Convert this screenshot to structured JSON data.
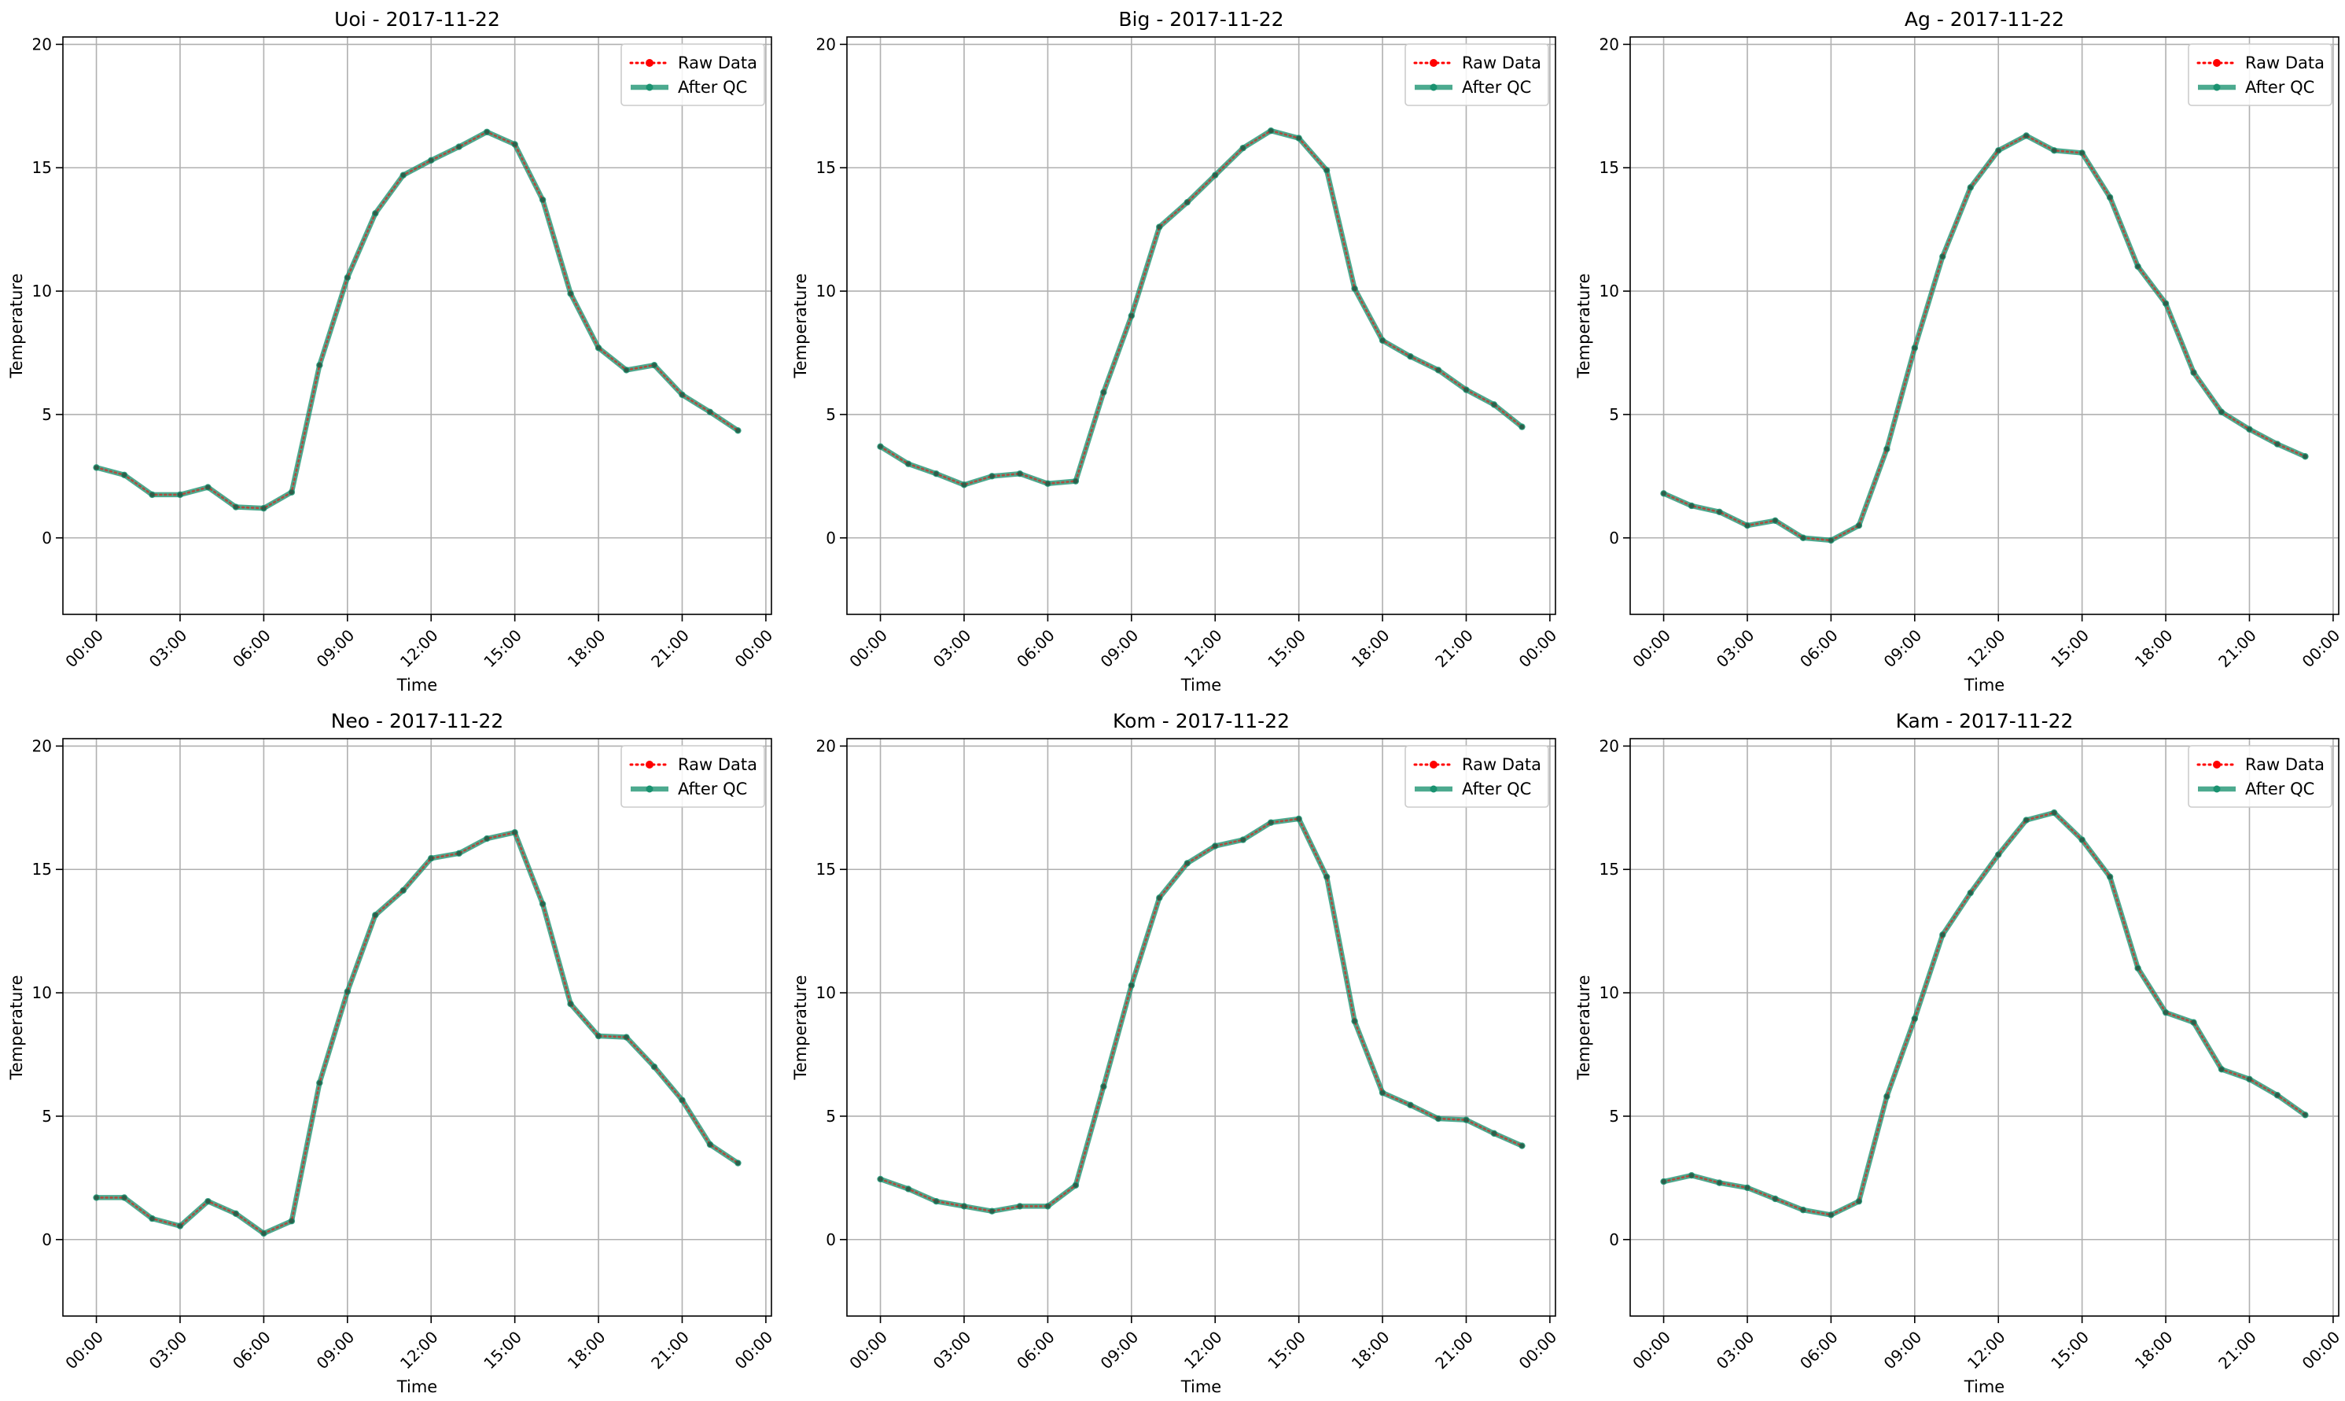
{
  "chart_data": [
    {
      "type": "line",
      "title": "Uoi - 2017-11-22",
      "xlabel": "Time",
      "ylabel": "Temperature",
      "x_ticks": [
        "00:00",
        "03:00",
        "06:00",
        "09:00",
        "12:00",
        "15:00",
        "18:00",
        "21:00",
        "00:00"
      ],
      "y_ticks": [
        "0",
        "5",
        "10",
        "15",
        "20"
      ],
      "ylim": [
        -3.1,
        20.3
      ],
      "xlim_hours": [
        -1.2,
        24.2
      ],
      "grid": true,
      "legend_position": "top-right",
      "x_hours": [
        0,
        1,
        2,
        3,
        4,
        5,
        6,
        7,
        8,
        9,
        10,
        11,
        12,
        13,
        14,
        15,
        16,
        17,
        18,
        19,
        20,
        21,
        22,
        23
      ],
      "series": [
        {
          "name": "Raw Data",
          "color": "#ff0000",
          "style": "dotted",
          "values": [
            2.85,
            2.55,
            1.75,
            1.75,
            2.05,
            1.25,
            1.2,
            1.85,
            7.0,
            10.55,
            13.15,
            14.7,
            15.3,
            15.85,
            16.45,
            15.95,
            13.7,
            9.9,
            7.7,
            6.8,
            7.0,
            5.8,
            5.1,
            4.35
          ]
        },
        {
          "name": "After QC",
          "color": "#1a9270",
          "style": "solid",
          "values": [
            2.85,
            2.55,
            1.75,
            1.75,
            2.05,
            1.25,
            1.2,
            1.85,
            7.0,
            10.55,
            13.15,
            14.7,
            15.3,
            15.85,
            16.45,
            15.95,
            13.7,
            9.9,
            7.7,
            6.8,
            7.0,
            5.8,
            5.1,
            4.35
          ]
        }
      ]
    },
    {
      "type": "line",
      "title": "Big - 2017-11-22",
      "xlabel": "Time",
      "ylabel": "Temperature",
      "x_ticks": [
        "00:00",
        "03:00",
        "06:00",
        "09:00",
        "12:00",
        "15:00",
        "18:00",
        "21:00",
        "00:00"
      ],
      "y_ticks": [
        "0",
        "5",
        "10",
        "15",
        "20"
      ],
      "ylim": [
        -3.1,
        20.3
      ],
      "xlim_hours": [
        -1.2,
        24.2
      ],
      "grid": true,
      "legend_position": "top-right",
      "x_hours": [
        0,
        1,
        2,
        3,
        4,
        5,
        6,
        7,
        8,
        9,
        10,
        11,
        12,
        13,
        14,
        15,
        16,
        17,
        18,
        19,
        20,
        21,
        22,
        23
      ],
      "series": [
        {
          "name": "Raw Data",
          "color": "#ff0000",
          "style": "dotted",
          "values": [
            3.7,
            3.0,
            2.6,
            2.15,
            2.5,
            2.6,
            2.2,
            2.3,
            5.9,
            9.0,
            12.6,
            13.6,
            14.7,
            15.8,
            16.5,
            16.2,
            14.9,
            10.1,
            8.0,
            7.35,
            6.8,
            6.0,
            5.4,
            4.5
          ]
        },
        {
          "name": "After QC",
          "color": "#1a9270",
          "style": "solid",
          "values": [
            3.7,
            3.0,
            2.6,
            2.15,
            2.5,
            2.6,
            2.2,
            2.3,
            5.9,
            9.0,
            12.6,
            13.6,
            14.7,
            15.8,
            16.5,
            16.2,
            14.9,
            10.1,
            8.0,
            7.35,
            6.8,
            6.0,
            5.4,
            4.5
          ]
        }
      ]
    },
    {
      "type": "line",
      "title": "Ag - 2017-11-22",
      "xlabel": "Time",
      "ylabel": "Temperature",
      "x_ticks": [
        "00:00",
        "03:00",
        "06:00",
        "09:00",
        "12:00",
        "15:00",
        "18:00",
        "21:00",
        "00:00"
      ],
      "y_ticks": [
        "0",
        "5",
        "10",
        "15",
        "20"
      ],
      "ylim": [
        -3.1,
        20.3
      ],
      "xlim_hours": [
        -1.2,
        24.2
      ],
      "grid": true,
      "legend_position": "top-right",
      "x_hours": [
        0,
        1,
        2,
        3,
        4,
        5,
        6,
        7,
        8,
        9,
        10,
        11,
        12,
        13,
        14,
        15,
        16,
        17,
        18,
        19,
        20,
        21,
        22,
        23
      ],
      "series": [
        {
          "name": "Raw Data",
          "color": "#ff0000",
          "style": "dotted",
          "values": [
            1.8,
            1.3,
            1.05,
            0.5,
            0.7,
            0.0,
            -0.1,
            0.5,
            3.6,
            7.7,
            11.4,
            14.2,
            15.7,
            16.3,
            15.7,
            15.6,
            13.8,
            11.0,
            9.5,
            6.7,
            5.1,
            4.4,
            3.8,
            3.3
          ]
        },
        {
          "name": "After QC",
          "color": "#1a9270",
          "style": "solid",
          "values": [
            1.8,
            1.3,
            1.05,
            0.5,
            0.7,
            0.0,
            -0.1,
            0.5,
            3.6,
            7.7,
            11.4,
            14.2,
            15.7,
            16.3,
            15.7,
            15.6,
            13.8,
            11.0,
            9.5,
            6.7,
            5.1,
            4.4,
            3.8,
            3.3
          ]
        }
      ]
    },
    {
      "type": "line",
      "title": "Neo - 2017-11-22",
      "xlabel": "Time",
      "ylabel": "Temperature",
      "x_ticks": [
        "00:00",
        "03:00",
        "06:00",
        "09:00",
        "12:00",
        "15:00",
        "18:00",
        "21:00",
        "00:00"
      ],
      "y_ticks": [
        "0",
        "5",
        "10",
        "15",
        "20"
      ],
      "ylim": [
        -3.1,
        20.3
      ],
      "xlim_hours": [
        -1.2,
        24.2
      ],
      "grid": true,
      "legend_position": "top-right",
      "x_hours": [
        0,
        1,
        2,
        3,
        4,
        5,
        6,
        7,
        8,
        9,
        10,
        11,
        12,
        13,
        14,
        15,
        16,
        17,
        18,
        19,
        20,
        21,
        22,
        23
      ],
      "series": [
        {
          "name": "Raw Data",
          "color": "#ff0000",
          "style": "dotted",
          "values": [
            1.7,
            1.7,
            0.85,
            0.55,
            1.55,
            1.05,
            0.25,
            0.75,
            6.35,
            10.05,
            13.15,
            14.15,
            15.45,
            15.65,
            16.25,
            16.5,
            13.6,
            9.55,
            8.25,
            8.2,
            7.0,
            5.65,
            3.85,
            3.1
          ]
        },
        {
          "name": "After QC",
          "color": "#1a9270",
          "style": "solid",
          "values": [
            1.7,
            1.7,
            0.85,
            0.55,
            1.55,
            1.05,
            0.25,
            0.75,
            6.35,
            10.05,
            13.15,
            14.15,
            15.45,
            15.65,
            16.25,
            16.5,
            13.6,
            9.55,
            8.25,
            8.2,
            7.0,
            5.65,
            3.85,
            3.1
          ]
        }
      ]
    },
    {
      "type": "line",
      "title": "Kom - 2017-11-22",
      "xlabel": "Time",
      "ylabel": "Temperature",
      "x_ticks": [
        "00:00",
        "03:00",
        "06:00",
        "09:00",
        "12:00",
        "15:00",
        "18:00",
        "21:00",
        "00:00"
      ],
      "y_ticks": [
        "0",
        "5",
        "10",
        "15",
        "20"
      ],
      "ylim": [
        -3.1,
        20.3
      ],
      "xlim_hours": [
        -1.2,
        24.2
      ],
      "grid": true,
      "legend_position": "top-right",
      "x_hours": [
        0,
        1,
        2,
        3,
        4,
        5,
        6,
        7,
        8,
        9,
        10,
        11,
        12,
        13,
        14,
        15,
        16,
        17,
        18,
        19,
        20,
        21,
        22,
        23
      ],
      "series": [
        {
          "name": "Raw Data",
          "color": "#ff0000",
          "style": "dotted",
          "values": [
            2.45,
            2.05,
            1.55,
            1.35,
            1.15,
            1.35,
            1.35,
            2.2,
            6.2,
            10.3,
            13.85,
            15.25,
            15.95,
            16.2,
            16.9,
            17.05,
            14.7,
            8.85,
            5.95,
            5.45,
            4.9,
            4.85,
            4.3,
            3.8
          ]
        },
        {
          "name": "After QC",
          "color": "#1a9270",
          "style": "solid",
          "values": [
            2.45,
            2.05,
            1.55,
            1.35,
            1.15,
            1.35,
            1.35,
            2.2,
            6.2,
            10.3,
            13.85,
            15.25,
            15.95,
            16.2,
            16.9,
            17.05,
            14.7,
            8.85,
            5.95,
            5.45,
            4.9,
            4.85,
            4.3,
            3.8
          ]
        }
      ]
    },
    {
      "type": "line",
      "title": "Kam - 2017-11-22",
      "xlabel": "Time",
      "ylabel": "Temperature",
      "x_ticks": [
        "00:00",
        "03:00",
        "06:00",
        "09:00",
        "12:00",
        "15:00",
        "18:00",
        "21:00",
        "00:00"
      ],
      "y_ticks": [
        "0",
        "5",
        "10",
        "15",
        "20"
      ],
      "ylim": [
        -3.1,
        20.3
      ],
      "xlim_hours": [
        -1.2,
        24.2
      ],
      "grid": true,
      "legend_position": "top-right",
      "x_hours": [
        0,
        1,
        2,
        3,
        4,
        5,
        6,
        7,
        8,
        9,
        10,
        11,
        12,
        13,
        14,
        15,
        16,
        17,
        18,
        19,
        20,
        21,
        22,
        23
      ],
      "series": [
        {
          "name": "Raw Data",
          "color": "#ff0000",
          "style": "dotted",
          "values": [
            2.35,
            2.6,
            2.3,
            2.1,
            1.65,
            1.2,
            1.0,
            1.55,
            5.8,
            8.95,
            12.35,
            14.05,
            15.6,
            17.0,
            17.3,
            16.2,
            14.7,
            11.0,
            9.2,
            8.8,
            6.9,
            6.5,
            5.85,
            5.05
          ]
        },
        {
          "name": "After QC",
          "color": "#1a9270",
          "style": "solid",
          "values": [
            2.35,
            2.6,
            2.3,
            2.1,
            1.65,
            1.2,
            1.0,
            1.55,
            5.8,
            8.95,
            12.35,
            14.05,
            15.6,
            17.0,
            17.3,
            16.2,
            14.7,
            11.0,
            9.2,
            8.8,
            6.9,
            6.5,
            5.85,
            5.05
          ]
        }
      ]
    }
  ]
}
